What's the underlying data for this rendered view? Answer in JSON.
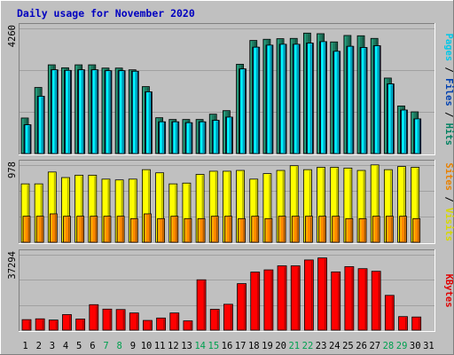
{
  "chart_data": {
    "type": "bar",
    "title": "Daily usage for November 2020",
    "categories": [
      "1",
      "2",
      "3",
      "4",
      "5",
      "6",
      "7",
      "8",
      "9",
      "10",
      "11",
      "12",
      "13",
      "14",
      "15",
      "16",
      "17",
      "18",
      "19",
      "20",
      "21",
      "22",
      "23",
      "24",
      "25",
      "26",
      "27",
      "28",
      "29",
      "30",
      "31"
    ],
    "weekend_days": [
      "7",
      "8",
      "14",
      "15",
      "21",
      "22",
      "28",
      "29"
    ],
    "panels": [
      {
        "id": "hits_files_pages",
        "max_label": "4260",
        "ylim": [
          0,
          4260
        ],
        "side_label": [
          {
            "text": "Pages",
            "color": "#00c8e8"
          },
          {
            "text": " / ",
            "color": "#000000"
          },
          {
            "text": "Files",
            "color": "#0040b0"
          },
          {
            "text": " / ",
            "color": "#000000"
          },
          {
            "text": "Hits",
            "color": "#008060"
          }
        ],
        "series": [
          {
            "name": "Hits",
            "color": "#1e7a60",
            "values": [
              1210,
              2250,
              3020,
              2920,
              3020,
              3020,
              2910,
              2910,
              2850,
              2280,
              1220,
              1160,
              1160,
              1160,
              1340,
              1460,
              3040,
              3850,
              3890,
              3910,
              3920,
              4100,
              4080,
              3800,
              4020,
              4010,
              3920,
              2570,
              1620,
              1420,
              0
            ]
          },
          {
            "name": "Files",
            "color": "#0a58c8",
            "values": [
              980,
              1950,
              2850,
              2830,
              2850,
              2850,
              2820,
              2820,
              2800,
              2100,
              1080,
              1080,
              1050,
              1080,
              1130,
              1240,
              2880,
              3620,
              3690,
              3720,
              3720,
              3760,
              3810,
              3480,
              3650,
              3610,
              3670,
              2370,
              1480,
              1180,
              0
            ]
          },
          {
            "name": "Pages",
            "color": "#00d8f8",
            "values": [
              980,
              1950,
              2850,
              2830,
              2850,
              2850,
              2820,
              2820,
              2800,
              2100,
              1080,
              1080,
              1050,
              1080,
              1130,
              1240,
              2880,
              3620,
              3690,
              3720,
              3720,
              3760,
              3810,
              3480,
              3650,
              3610,
              3670,
              2370,
              1480,
              1180,
              0
            ]
          }
        ]
      },
      {
        "id": "visits_sites",
        "max_label": "978",
        "ylim": [
          0,
          978
        ],
        "side_label": [
          {
            "text": "Sites",
            "color": "#e88000"
          },
          {
            "text": " / ",
            "color": "#000000"
          },
          {
            "text": "Visits",
            "color": "#d8d800"
          }
        ],
        "series": [
          {
            "name": "Visits",
            "color": "#ffff00",
            "values": [
              740,
              740,
              890,
              820,
              850,
              850,
              800,
              790,
              800,
              920,
              880,
              740,
              750,
              860,
              900,
              900,
              910,
              800,
              870,
              910,
              970,
              920,
              950,
              950,
              940,
              910,
              980,
              920,
              960,
              950,
              0
            ]
          },
          {
            "name": "Sites",
            "color": "#ff8800",
            "values": [
              330,
              330,
              360,
              330,
              330,
              330,
              330,
              330,
              300,
              360,
              300,
              330,
              300,
              300,
              330,
              330,
              300,
              330,
              300,
              330,
              330,
              330,
              330,
              330,
              300,
              300,
              330,
              330,
              330,
              300,
              0
            ]
          }
        ]
      },
      {
        "id": "kbytes",
        "max_label": "37294",
        "ylim": [
          0,
          37294
        ],
        "side_label": [
          {
            "text": "KBytes",
            "color": "#e00000"
          }
        ],
        "series": [
          {
            "name": "KBytes",
            "color": "#ff0000",
            "values": [
              5200,
              5600,
              5000,
              7700,
              5500,
              12600,
              10400,
              10200,
              8500,
              4800,
              6000,
              8500,
              4600,
              24900,
              10300,
              12800,
              23000,
              28700,
              29800,
              31800,
              31800,
              34700,
              35700,
              28800,
              31400,
              30400,
              29100,
              17200,
              6700,
              6500,
              0
            ]
          }
        ]
      }
    ]
  }
}
